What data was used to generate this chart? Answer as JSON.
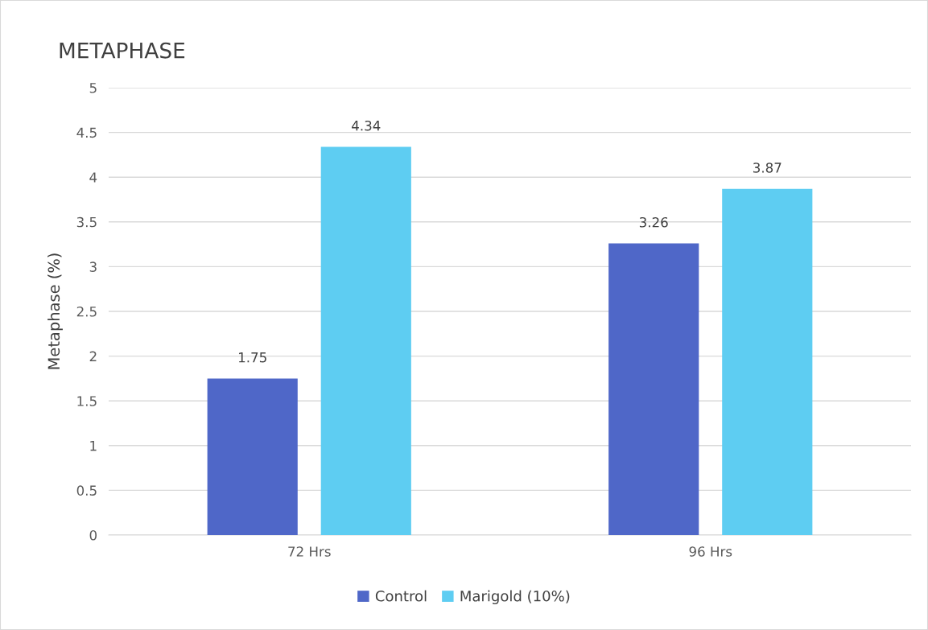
{
  "chart_data": {
    "type": "bar",
    "title": "METAPHASE",
    "ylabel": "Metaphase (%)",
    "categories": [
      "72 Hrs",
      "96 Hrs"
    ],
    "series": [
      {
        "name": "Control",
        "color": "#4f67c8",
        "values": [
          1.75,
          3.26
        ]
      },
      {
        "name": "Marigold (10%)",
        "color": "#5ecdf2",
        "values": [
          4.34,
          3.87
        ]
      }
    ],
    "ylim": [
      0,
      5
    ],
    "yticks": [
      0,
      0.5,
      1,
      1.5,
      2,
      2.5,
      3,
      3.5,
      4,
      4.5,
      5
    ],
    "grid": "y",
    "legend": "bottom",
    "data_labels": true
  }
}
